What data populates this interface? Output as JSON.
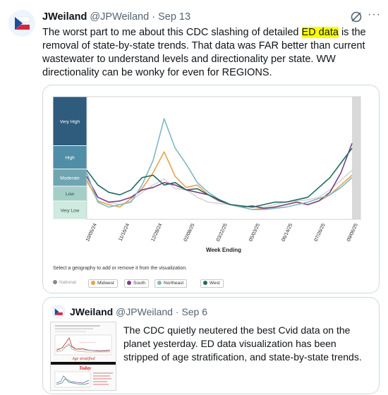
{
  "tweet": {
    "display_name": "JWeiland",
    "handle": "@JPWeiland",
    "separator": "·",
    "date": "Sep 13",
    "text_before": "The worst part to me about this CDC slashing of detailed",
    "text_highlight": "ED data",
    "text_after": "is the removal of state-by-state trends.  That data was FAR better than current wastewater to understand levels and directionality per state. WW directionality can be wonky for even for REGIONS.",
    "highlight_color": "#ffff00",
    "icons": [
      "avatar-flag",
      "grok-icon",
      "more-icon"
    ]
  },
  "chart_data": {
    "type": "line",
    "xlabel": "Week Ending",
    "ylabel": "",
    "x_tick_labels": [
      "10/05/24",
      "11/16/24",
      "12/28/24",
      "02/08/25",
      "03/22/25",
      "05/03/25",
      "06/14/25",
      "07/26/25",
      "09/06/25"
    ],
    "levels": [
      "Very High",
      "High",
      "Moderate",
      "Low",
      "Very Low"
    ],
    "level_colors": [
      "#2f5b7d",
      "#4f8ea6",
      "#6fa5b1",
      "#a3cfc7",
      "#cfeadf"
    ],
    "ylim": [
      0,
      100
    ],
    "grid": false,
    "x": [
      0,
      2,
      4,
      6,
      8,
      10,
      12,
      14,
      16,
      18,
      20,
      22,
      24,
      26,
      28,
      30,
      32,
      34,
      36,
      38,
      40,
      42,
      44,
      46,
      48
    ],
    "series": [
      {
        "name": "National",
        "color": "#888888",
        "values": [
          30,
          18,
          14,
          12,
          15,
          22,
          28,
          33,
          25,
          24,
          18,
          14,
          13,
          12,
          11,
          10,
          10,
          12,
          14,
          15,
          16,
          18,
          24,
          32,
          40
        ]
      },
      {
        "name": "Midwest",
        "color": "#e8a24c",
        "values": [
          32,
          15,
          12,
          10,
          17,
          25,
          38,
          55,
          35,
          26,
          28,
          20,
          15,
          12,
          10,
          8,
          9,
          10,
          12,
          14,
          12,
          15,
          20,
          28,
          36
        ]
      },
      {
        "name": "South",
        "color": "#7b3f86",
        "values": [
          35,
          18,
          14,
          15,
          18,
          24,
          26,
          30,
          28,
          24,
          22,
          20,
          15,
          12,
          10,
          11,
          9,
          10,
          12,
          14,
          12,
          15,
          22,
          38,
          62
        ]
      },
      {
        "name": "Northeast",
        "color": "#7fb8c2",
        "values": [
          38,
          14,
          10,
          12,
          14,
          28,
          48,
          82,
          58,
          45,
          30,
          22,
          16,
          12,
          10,
          8,
          8,
          9,
          10,
          12,
          14,
          17,
          20,
          26,
          34
        ]
      },
      {
        "name": "West",
        "color": "#1f6b5e",
        "values": [
          40,
          28,
          22,
          20,
          24,
          34,
          36,
          28,
          30,
          24,
          25,
          20,
          16,
          12,
          11,
          10,
          12,
          14,
          14,
          16,
          18,
          26,
          34,
          46,
          58
        ]
      }
    ]
  },
  "media": {
    "select_text": "Select a geography to add or remove it from the visualization.",
    "legend_items": [
      "National",
      "Midwest",
      "South",
      "Northeast",
      "West"
    ],
    "legend_colors": [
      "#888888",
      "#e8a24c",
      "#7b3f86",
      "#7fb8c2",
      "#1f6b5e"
    ]
  },
  "quoted": {
    "display_name": "JWeiland",
    "handle": "@JPWeiland",
    "separator": "·",
    "date": "Sep 6",
    "text": "The CDC quietly neutered the best Cvid data on the planet yesterday.  ED data visualization has been stripped of age stratification, and state-by-state trends.",
    "thumb_red_label_1": "Age stratified",
    "thumb_red_label_2": "Today"
  }
}
